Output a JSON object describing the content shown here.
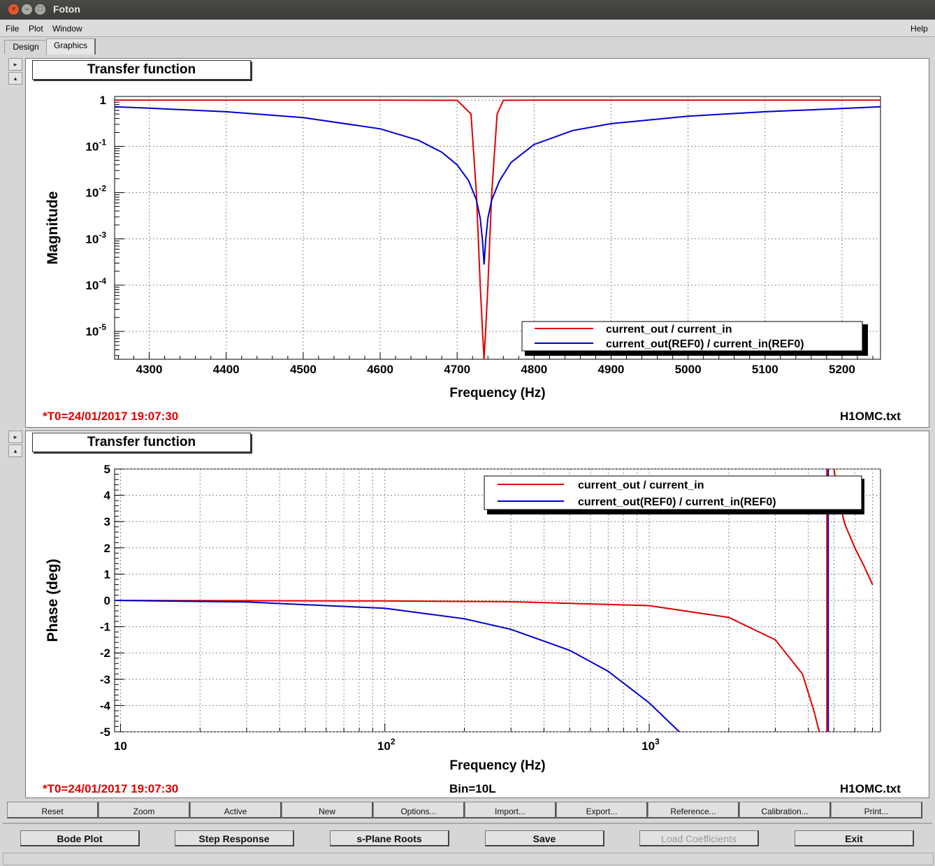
{
  "window": {
    "title": "Foton"
  },
  "menu": {
    "file": "File",
    "plot": "Plot",
    "window": "Window",
    "help": "Help"
  },
  "tabs": {
    "design": "Design",
    "graphics": "Graphics"
  },
  "plot1": {
    "title": "Transfer function",
    "xlabel": "Frequency (Hz)",
    "ylabel": "Magnitude",
    "timestamp": "*T0=24/01/2017 19:07:30",
    "file": "H1OMC.txt"
  },
  "plot2": {
    "title": "Transfer function",
    "xlabel": "Frequency (Hz)",
    "ylabel": "Phase (deg)",
    "timestamp": "*T0=24/01/2017 19:07:30",
    "bin": "Bin=10L",
    "file": "H1OMC.txt"
  },
  "chart_data": [
    {
      "type": "line",
      "title": "Transfer function",
      "xlabel": "Frequency (Hz)",
      "ylabel": "Magnitude",
      "yscale": "log",
      "xlim": [
        4255,
        5250
      ],
      "ylim": [
        2.5e-06,
        1.2
      ],
      "grid": true,
      "legend_position": "bottom-right",
      "x_ticks": [
        "4300",
        "4400",
        "4500",
        "4600",
        "4700",
        "4800",
        "4900",
        "5000",
        "5100",
        "5200"
      ],
      "y_ticks": [
        {
          "base": "1",
          "exp": ""
        },
        {
          "base": "10",
          "exp": "-1"
        },
        {
          "base": "10",
          "exp": "-2"
        },
        {
          "base": "10",
          "exp": "-3"
        },
        {
          "base": "10",
          "exp": "-4"
        },
        {
          "base": "10",
          "exp": "-5"
        }
      ],
      "series": [
        {
          "name": "current_out / current_in",
          "color": "#e00000",
          "x": [
            4255,
            4400,
            4600,
            4700,
            4718,
            4725,
            4730,
            4733,
            4735,
            4737,
            4740,
            4745,
            4752,
            4760,
            4800,
            5000,
            5250
          ],
          "y": [
            1,
            1,
            1,
            0.99,
            0.5,
            0.01,
            0.0001,
            1e-05,
            2.5e-06,
            1e-05,
            0.0001,
            0.01,
            0.5,
            0.99,
            1,
            1,
            1
          ]
        },
        {
          "name": "current_out(REF0) / current_in(REF0)",
          "color": "#0000d0",
          "x": [
            4255,
            4300,
            4400,
            4500,
            4600,
            4650,
            4680,
            4700,
            4715,
            4725,
            4730,
            4733,
            4735,
            4737,
            4740,
            4745,
            4755,
            4770,
            4800,
            4850,
            4900,
            5000,
            5100,
            5200,
            5250
          ],
          "y": [
            0.72,
            0.67,
            0.56,
            0.42,
            0.24,
            0.135,
            0.075,
            0.04,
            0.018,
            0.007,
            0.0028,
            0.0009,
            0.00028,
            0.0009,
            0.0028,
            0.007,
            0.018,
            0.045,
            0.11,
            0.22,
            0.31,
            0.45,
            0.56,
            0.66,
            0.72
          ]
        }
      ]
    },
    {
      "type": "line",
      "title": "Transfer function",
      "xlabel": "Frequency (Hz)",
      "ylabel": "Phase (deg)",
      "xscale": "log",
      "xlim": [
        9.5,
        7500
      ],
      "ylim": [
        -5,
        5
      ],
      "grid": true,
      "legend_position": "top-right",
      "x_ticks": [
        {
          "base": "10",
          "exp": ""
        },
        {
          "base": "10",
          "exp": "2"
        },
        {
          "base": "10",
          "exp": "3"
        }
      ],
      "y_ticks": [
        "5",
        "4",
        "3",
        "2",
        "1",
        "0",
        "-1",
        "-2",
        "-3",
        "-4",
        "-5"
      ],
      "series": [
        {
          "name": "current_out / current_in",
          "color": "#e00000",
          "x": [
            9.5,
            30,
            100,
            300,
            1000,
            2000,
            3000,
            3800,
            4200,
            4400
          ],
          "y": [
            0,
            -0.01,
            -0.02,
            -0.05,
            -0.2,
            -0.65,
            -1.5,
            -2.8,
            -4.2,
            -5
          ]
        },
        {
          "name": "current_out(REF0) / current_in(REF0)",
          "color": "#0000d0",
          "x": [
            9.5,
            30,
            100,
            200,
            300,
            500,
            700,
            1000,
            1300
          ],
          "y": [
            0,
            -0.06,
            -0.3,
            -0.7,
            -1.1,
            -1.9,
            -2.7,
            -3.9,
            -5
          ]
        },
        {
          "name": "",
          "color": "#e00000",
          "x": [
            5000,
            5200,
            5500,
            6000,
            6500,
            7000
          ],
          "y": [
            5,
            3.9,
            2.9,
            2,
            1.3,
            0.6
          ]
        }
      ]
    }
  ],
  "toolbar": {
    "reset": "Reset",
    "zoom": "Zoom",
    "active": "Active",
    "new": "New",
    "options": "Options...",
    "import": "Import...",
    "export": "Export...",
    "reference": "Reference...",
    "calibration": "Calibration...",
    "print": "Print..."
  },
  "bottom": {
    "bode": "Bode Plot",
    "step": "Step Response",
    "splane": "s-Plane Roots",
    "save": "Save",
    "load": "Load Coefficients",
    "exit": "Exit"
  }
}
